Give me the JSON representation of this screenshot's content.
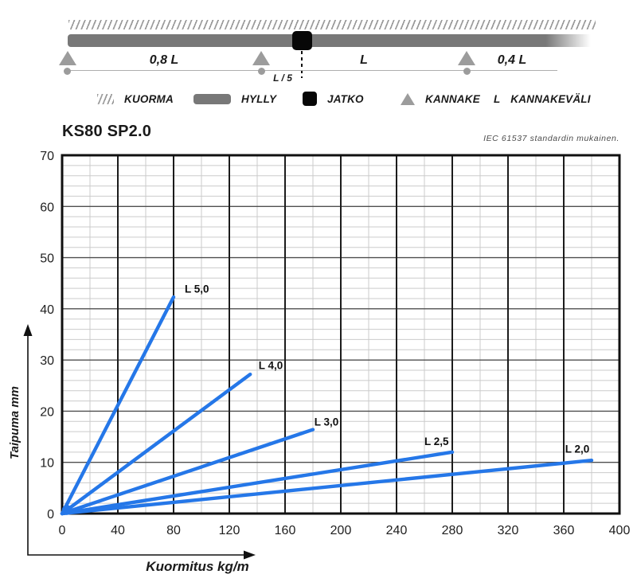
{
  "diagram": {
    "spans": [
      "0,8 L",
      "L",
      "0,4 L"
    ],
    "joint_label": "L / 5",
    "legend": [
      {
        "label": "KUORMA"
      },
      {
        "label": "HYLLY"
      },
      {
        "label": "JATKO"
      },
      {
        "label": "KANNAKE"
      },
      {
        "symbol": "L",
        "label": "KANNAKEVÄLI"
      }
    ]
  },
  "chart": {
    "title": "KS80 SP2.0",
    "note": "IEC 61537 standardin mukainen.",
    "xlabel": "Kuormitus kg/m",
    "ylabel": "Taipuma mm"
  },
  "colors": {
    "line_blue": "#2577e8",
    "shelf_gray": "#787878",
    "support_gray": "#9c9c9c",
    "hatch_gray": "#9a9a9a"
  },
  "chart_data": {
    "type": "line",
    "title": "KS80 SP2.0",
    "note": "IEC 61537 standardin mukainen.",
    "xlabel": "Kuormitus kg/m",
    "ylabel": "Taipuma mm",
    "xlim": [
      0,
      400
    ],
    "ylim": [
      0,
      70
    ],
    "x_ticks": [
      0,
      40,
      80,
      120,
      160,
      200,
      240,
      280,
      320,
      360,
      400
    ],
    "y_ticks": [
      0,
      10,
      20,
      30,
      40,
      50,
      60,
      70
    ],
    "x_minor_step": 20,
    "y_minor_step": 2,
    "grid": true,
    "legend_position": "inline-labels",
    "line_color": "#2577e8",
    "series": [
      {
        "name": "L 5,0",
        "points": [
          [
            0,
            0
          ],
          [
            80,
            42.3
          ]
        ],
        "label_at": [
          88,
          43.2
        ]
      },
      {
        "name": "L 4,0",
        "points": [
          [
            0,
            0
          ],
          [
            135,
            27.2
          ]
        ],
        "label_at": [
          141,
          28.2
        ]
      },
      {
        "name": "L 3,0",
        "points": [
          [
            0,
            0
          ],
          [
            180,
            16.4
          ]
        ],
        "label_at": [
          181,
          17.2
        ]
      },
      {
        "name": "L 2,5",
        "points": [
          [
            0,
            0
          ],
          [
            280,
            12.0
          ]
        ],
        "label_at": [
          260,
          13.4
        ]
      },
      {
        "name": "L 2,0",
        "points": [
          [
            0,
            0
          ],
          [
            380,
            10.4
          ]
        ],
        "label_at": [
          361,
          11.9
        ]
      }
    ]
  }
}
